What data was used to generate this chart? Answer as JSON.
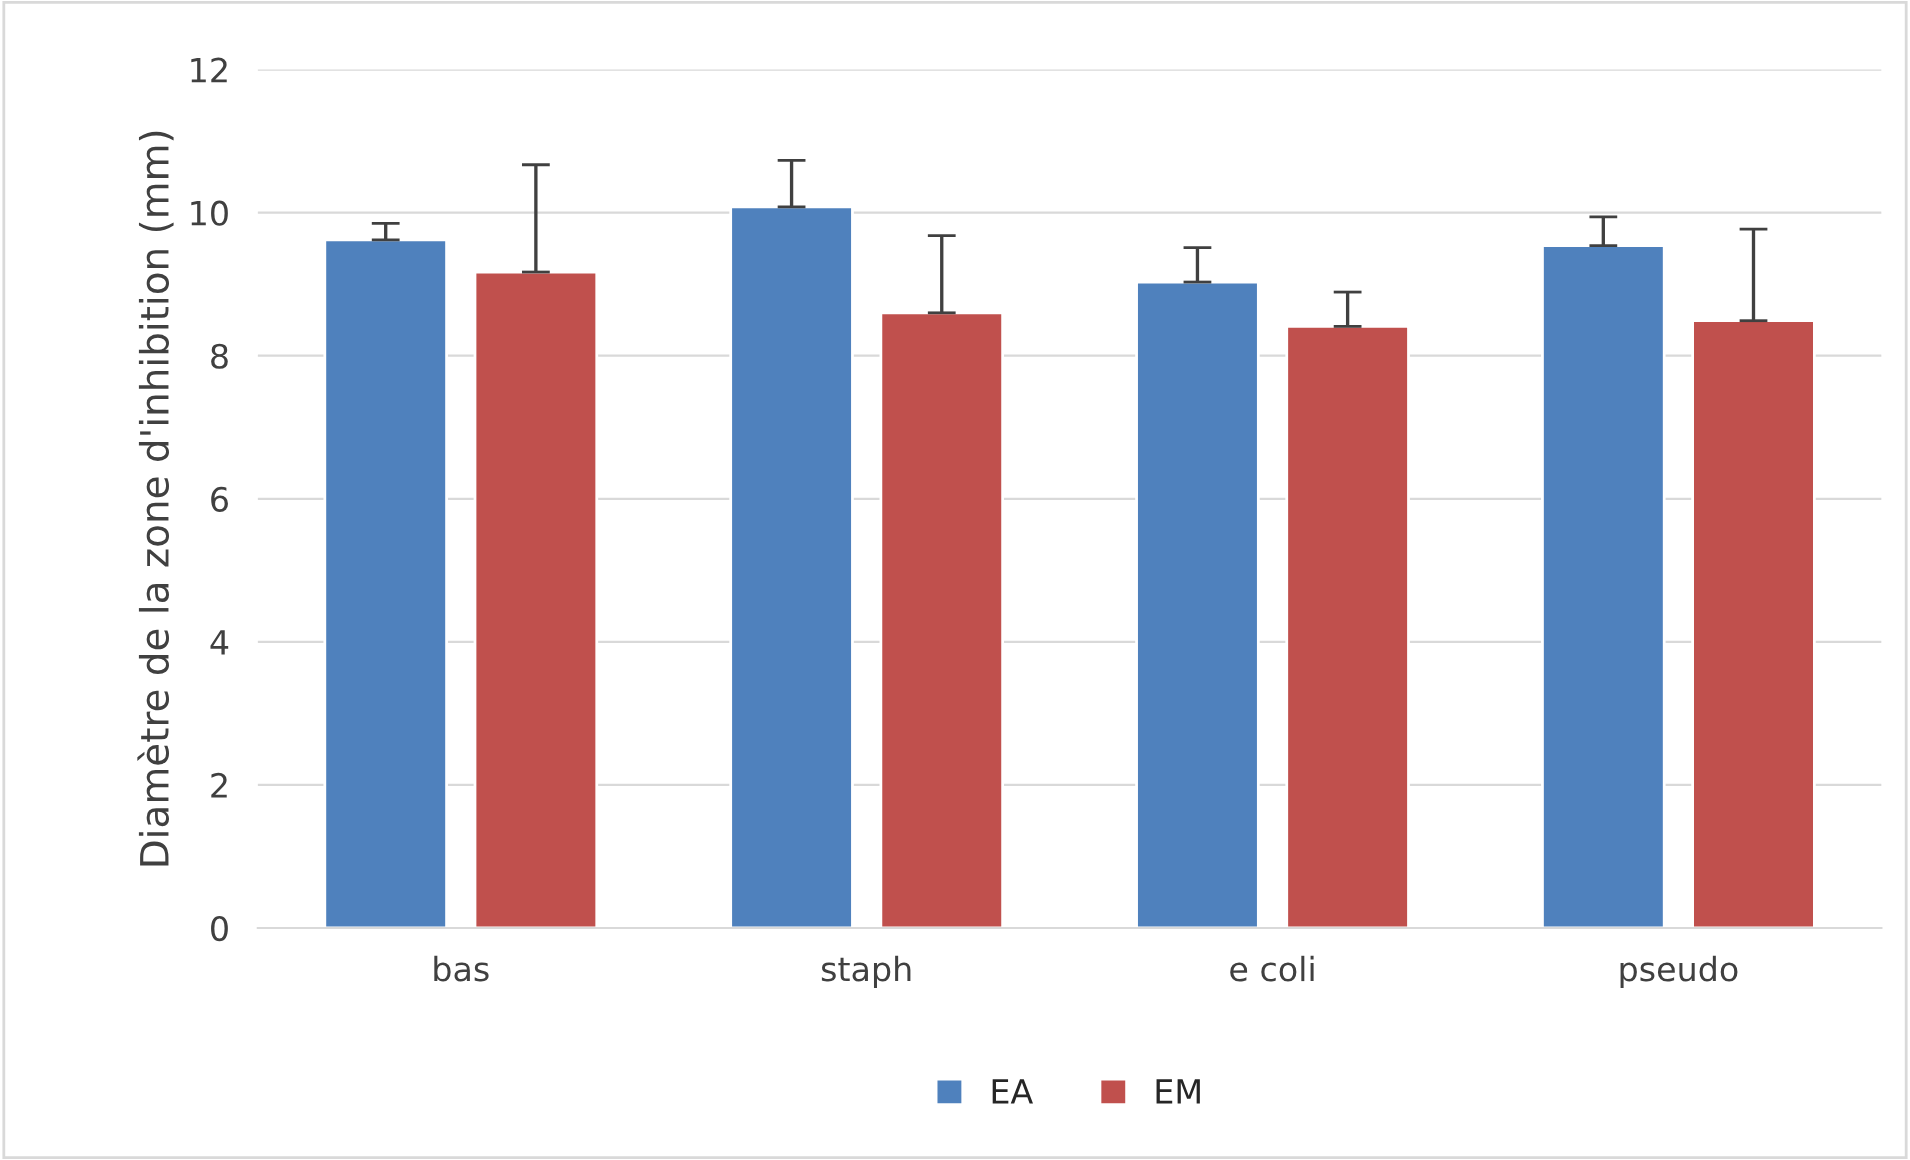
{
  "chart_data": {
    "type": "bar",
    "ylabel": "Diamètre de la zone d'inhibition (mm)",
    "categories": [
      "bas",
      "staph",
      "e coli",
      "pseudo"
    ],
    "series": [
      {
        "name": "EA",
        "color": "#4f81bd",
        "values": [
          9.62,
          10.08,
          9.03,
          9.54
        ],
        "errors": [
          [
            9.62,
            9.85
          ],
          [
            10.08,
            10.73
          ],
          [
            9.03,
            9.51
          ],
          [
            9.54,
            9.94
          ]
        ]
      },
      {
        "name": "EM",
        "color": "#c0504d",
        "values": [
          9.17,
          8.6,
          8.41,
          8.49
        ],
        "errors": [
          [
            9.17,
            10.67
          ],
          [
            8.6,
            9.68
          ],
          [
            8.41,
            8.89
          ],
          [
            8.49,
            9.77
          ]
        ]
      }
    ],
    "ylim": [
      0,
      12
    ],
    "yticks": [
      0,
      2,
      4,
      6,
      8,
      10,
      12
    ],
    "grid": "y",
    "legend": "bottom"
  }
}
